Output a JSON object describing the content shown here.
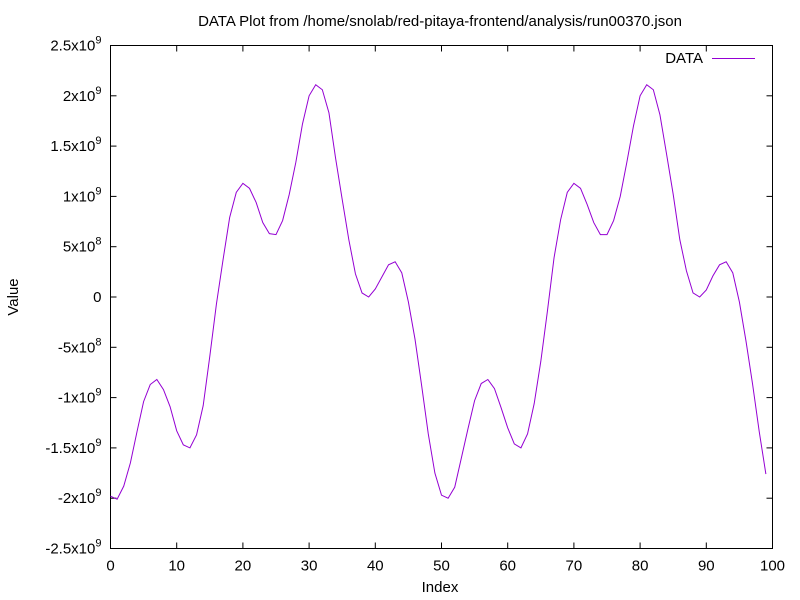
{
  "chart_data": {
    "type": "line",
    "title": "DATA Plot from /home/snolab/red-pitaya-frontend/analysis/run00370.json",
    "xlabel": "Index",
    "ylabel": "Value",
    "xlim": [
      0,
      100
    ],
    "ylim": [
      -2500000000,
      2500000000
    ],
    "grid": false,
    "legend_position": "top-right",
    "x_ticks": [
      0,
      10,
      20,
      30,
      40,
      50,
      60,
      70,
      80,
      90,
      100
    ],
    "y_ticks": [
      {
        "value": -2500000000,
        "mantissa": "-2.5x10",
        "exp": "9"
      },
      {
        "value": -2000000000,
        "mantissa": "-2x10",
        "exp": "9"
      },
      {
        "value": -1500000000,
        "mantissa": "-1.5x10",
        "exp": "9"
      },
      {
        "value": -1000000000,
        "mantissa": "-1x10",
        "exp": "9"
      },
      {
        "value": -500000000,
        "mantissa": "-5x10",
        "exp": "8"
      },
      {
        "value": 0,
        "mantissa": "0",
        "exp": ""
      },
      {
        "value": 500000000,
        "mantissa": "5x10",
        "exp": "8"
      },
      {
        "value": 1000000000,
        "mantissa": "1x10",
        "exp": "9"
      },
      {
        "value": 1500000000,
        "mantissa": "1.5x10",
        "exp": "9"
      },
      {
        "value": 2000000000,
        "mantissa": "2x10",
        "exp": "9"
      },
      {
        "value": 2500000000,
        "mantissa": "2.5x10",
        "exp": "9"
      }
    ],
    "series": [
      {
        "name": "DATA",
        "color": "#9400d3",
        "x": [
          0,
          1,
          2,
          3,
          4,
          5,
          6,
          7,
          8,
          9,
          10,
          11,
          12,
          13,
          14,
          15,
          16,
          17,
          18,
          19,
          20,
          21,
          22,
          23,
          24,
          25,
          26,
          27,
          28,
          29,
          30,
          31,
          32,
          33,
          34,
          35,
          36,
          37,
          38,
          39,
          40,
          41,
          42,
          43,
          44,
          45,
          46,
          47,
          48,
          49,
          50,
          51,
          52,
          53,
          54,
          55,
          56,
          57,
          58,
          59,
          60,
          61,
          62,
          63,
          64,
          65,
          66,
          67,
          68,
          69,
          70,
          71,
          72,
          73,
          74,
          75,
          76,
          77,
          78,
          79,
          80,
          81,
          82,
          83,
          84,
          85,
          86,
          87,
          88,
          89,
          90,
          91,
          92,
          93,
          94,
          95,
          96,
          97,
          98,
          99
        ],
        "values": [
          -1980000000,
          -2010000000,
          -1880000000,
          -1650000000,
          -1340000000,
          -1040000000,
          -870000000,
          -820000000,
          -920000000,
          -1090000000,
          -1330000000,
          -1470000000,
          -1500000000,
          -1370000000,
          -1080000000,
          -590000000,
          -70000000,
          370000000,
          790000000,
          1040000000,
          1130000000,
          1080000000,
          940000000,
          740000000,
          630000000,
          620000000,
          760000000,
          1020000000,
          1340000000,
          1720000000,
          2000000000,
          2110000000,
          2060000000,
          1830000000,
          1380000000,
          970000000,
          570000000,
          230000000,
          40000000,
          0,
          80000000,
          200000000,
          320000000,
          350000000,
          240000000,
          -50000000,
          -420000000,
          -880000000,
          -1360000000,
          -1750000000,
          -1970000000,
          -2000000000,
          -1890000000,
          -1600000000,
          -1310000000,
          -1030000000,
          -860000000,
          -820000000,
          -910000000,
          -1100000000,
          -1300000000,
          -1460000000,
          -1500000000,
          -1360000000,
          -1060000000,
          -640000000,
          -140000000,
          390000000,
          770000000,
          1040000000,
          1130000000,
          1080000000,
          920000000,
          740000000,
          620000000,
          620000000,
          760000000,
          1000000000,
          1340000000,
          1700000000,
          2000000000,
          2110000000,
          2060000000,
          1810000000,
          1420000000,
          1020000000,
          570000000,
          260000000,
          40000000,
          0,
          70000000,
          210000000,
          320000000,
          350000000,
          240000000,
          -50000000,
          -440000000,
          -870000000,
          -1340000000,
          -1760000000
        ]
      }
    ]
  }
}
